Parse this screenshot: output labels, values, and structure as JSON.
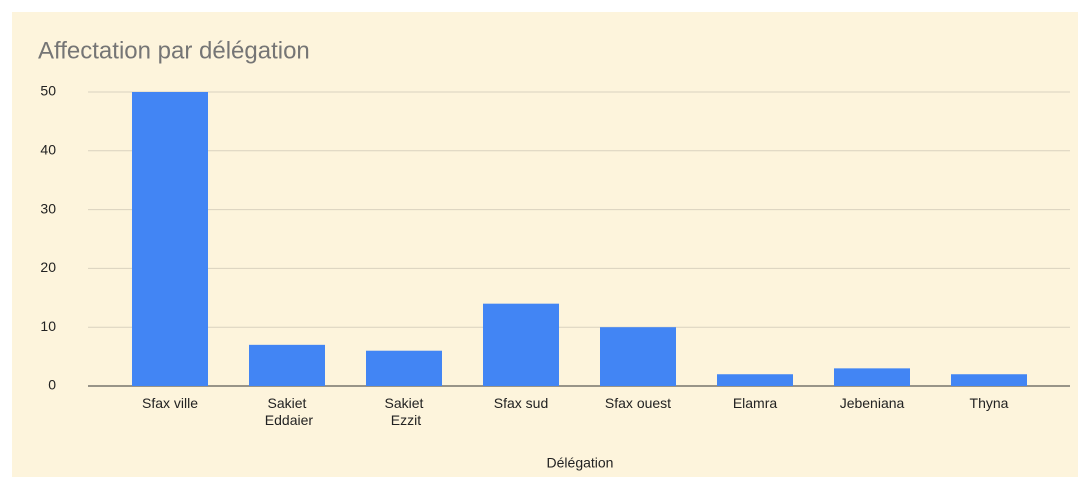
{
  "chart_data": {
    "type": "bar",
    "title": "Affectation par délégation",
    "x_label": "Délégation",
    "categories": [
      "Sfax ville",
      "Sakiet Eddaier",
      "Sakiet Ezzit",
      "Sfax sud",
      "Sfax ouest",
      "Elamra",
      "Jebeniana",
      "Thyna"
    ],
    "values": [
      50,
      7,
      6,
      14,
      10,
      2,
      3,
      2
    ],
    "color": "#4285f4",
    "ylim": [
      0,
      50
    ],
    "yticks": [
      0,
      10,
      20,
      30,
      40,
      50
    ],
    "grid": true
  }
}
